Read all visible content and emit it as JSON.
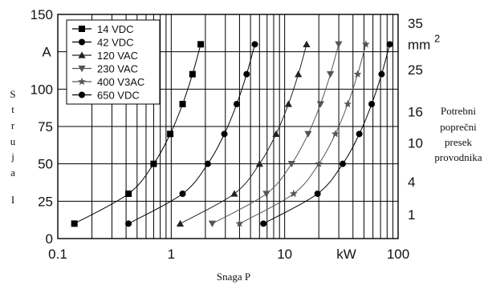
{
  "chart_data": {
    "type": "line",
    "xscale": "log",
    "xlim": [
      0.1,
      100
    ],
    "ylim": [
      0,
      150
    ],
    "grid": true,
    "legend_position": "top-left",
    "xlabel": "Snaga P",
    "x_unit": "kW",
    "ylabel_letters": [
      "S",
      "t",
      "r",
      "u",
      "j",
      "a",
      "",
      "I"
    ],
    "y_unit": "A",
    "x_tick_labels": [
      {
        "v": 0.1,
        "t": "0.1"
      },
      {
        "v": 1,
        "t": "1"
      },
      {
        "v": 10,
        "t": "10"
      },
      {
        "v": 100,
        "t": "100"
      }
    ],
    "y_tick_labels": [
      {
        "v": 0,
        "t": "0"
      },
      {
        "v": 25,
        "t": "25"
      },
      {
        "v": 50,
        "t": "50"
      },
      {
        "v": 75,
        "t": "75"
      },
      {
        "v": 100,
        "t": "100"
      },
      {
        "v": 150,
        "t": "150"
      }
    ],
    "right_axis_title_lines": [
      "Potrebni",
      "poprečni",
      "presek",
      "provodnika"
    ],
    "right_axis_unit": "mm",
    "right_axis_unit_exp": "2",
    "right_axis_labels": [
      {
        "y": 144,
        "t": "35"
      },
      {
        "y": 113,
        "t": "25"
      },
      {
        "y": 85,
        "t": "16"
      },
      {
        "y": 64,
        "t": "10"
      },
      {
        "y": 38,
        "t": "4"
      },
      {
        "y": 16,
        "t": "1"
      }
    ],
    "series": [
      {
        "name": "14 VDC",
        "marker": "square",
        "color": "#000000",
        "x": [
          0.14,
          0.42,
          0.7,
          0.98,
          1.26,
          1.54,
          1.82
        ],
        "y": [
          10,
          30,
          50,
          70,
          90,
          110,
          130
        ]
      },
      {
        "name": "42 VDC",
        "marker": "circle",
        "color": "#000000",
        "x": [
          0.42,
          1.26,
          2.1,
          2.94,
          3.78,
          4.62,
          5.46
        ],
        "y": [
          10,
          30,
          50,
          70,
          90,
          110,
          130
        ]
      },
      {
        "name": "120 VAC",
        "marker": "triangle-up",
        "color": "#222222",
        "x": [
          1.2,
          3.6,
          6.0,
          8.4,
          10.8,
          13.2,
          15.6
        ],
        "y": [
          10,
          30,
          50,
          70,
          90,
          110,
          130
        ]
      },
      {
        "name": "230 VAC",
        "marker": "triangle-down",
        "color": "#555555",
        "x": [
          2.3,
          6.9,
          11.5,
          16.1,
          20.7,
          25.3,
          29.9
        ],
        "y": [
          10,
          30,
          50,
          70,
          90,
          110,
          130
        ]
      },
      {
        "name": "400 V3AC",
        "marker": "star",
        "color": "#555555",
        "x": [
          4.0,
          12.0,
          20.0,
          28.0,
          36.0,
          44.0,
          52.0
        ],
        "y": [
          10,
          30,
          50,
          70,
          90,
          110,
          130
        ]
      },
      {
        "name": "650 VDC",
        "marker": "circle",
        "color": "#000000",
        "x": [
          6.5,
          19.5,
          32.5,
          45.5,
          58.5,
          71.5,
          84.5
        ],
        "y": [
          10,
          30,
          50,
          70,
          90,
          110,
          130
        ]
      }
    ]
  }
}
